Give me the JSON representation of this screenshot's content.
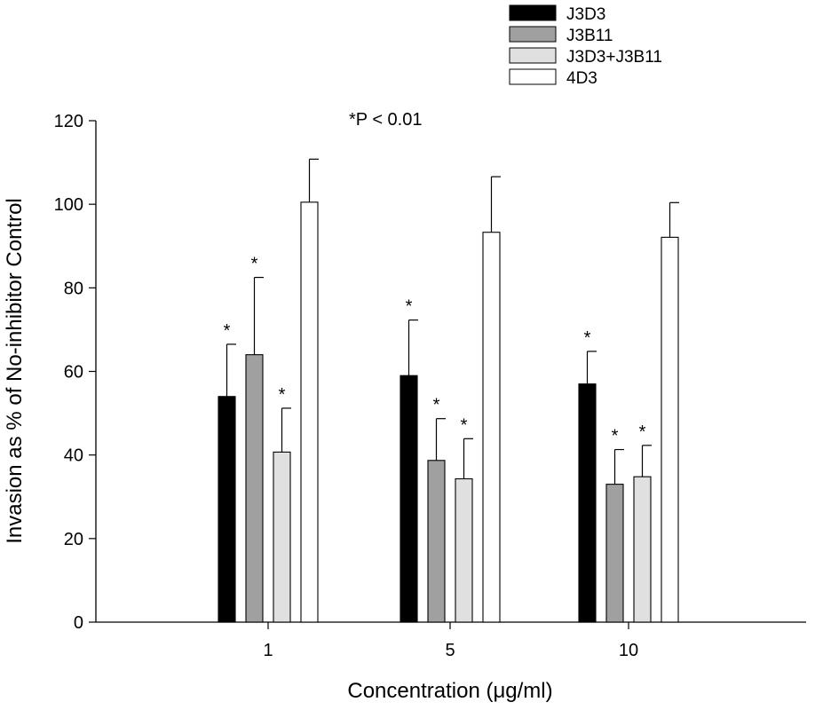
{
  "chart_data": {
    "type": "bar",
    "title": "",
    "xlabel": "Concentration (μg/ml)",
    "ylabel": "Invasion as % of No-inhibitor Control",
    "annotation": "*P < 0.01",
    "categories": [
      "1",
      "5",
      "10"
    ],
    "ylim": [
      0,
      120
    ],
    "yticks": [
      "0",
      "20",
      "40",
      "60",
      "80",
      "100",
      "120"
    ],
    "legend_position": "top-right",
    "grid": false,
    "series": [
      {
        "name": "J3D3",
        "color": "#000000",
        "values": [
          54,
          59,
          57
        ],
        "errors": [
          12.5,
          13.3,
          7.8
        ],
        "significant": [
          true,
          true,
          true
        ]
      },
      {
        "name": "J3B11",
        "color": "#a0a0a0",
        "values": [
          64,
          38.7,
          33
        ],
        "errors": [
          18.5,
          10,
          8.3
        ],
        "significant": [
          true,
          true,
          true
        ]
      },
      {
        "name": "J3D3+J3B11",
        "color": "#e0e0e0",
        "values": [
          40.7,
          34.3,
          34.8
        ],
        "errors": [
          10.5,
          9.6,
          7.5
        ],
        "significant": [
          true,
          true,
          true
        ]
      },
      {
        "name": "4D3",
        "color": "#ffffff",
        "values": [
          100.5,
          93.3,
          92.1
        ],
        "errors": [
          10.3,
          13.3,
          8.3
        ],
        "significant": [
          false,
          false,
          false
        ]
      }
    ]
  }
}
